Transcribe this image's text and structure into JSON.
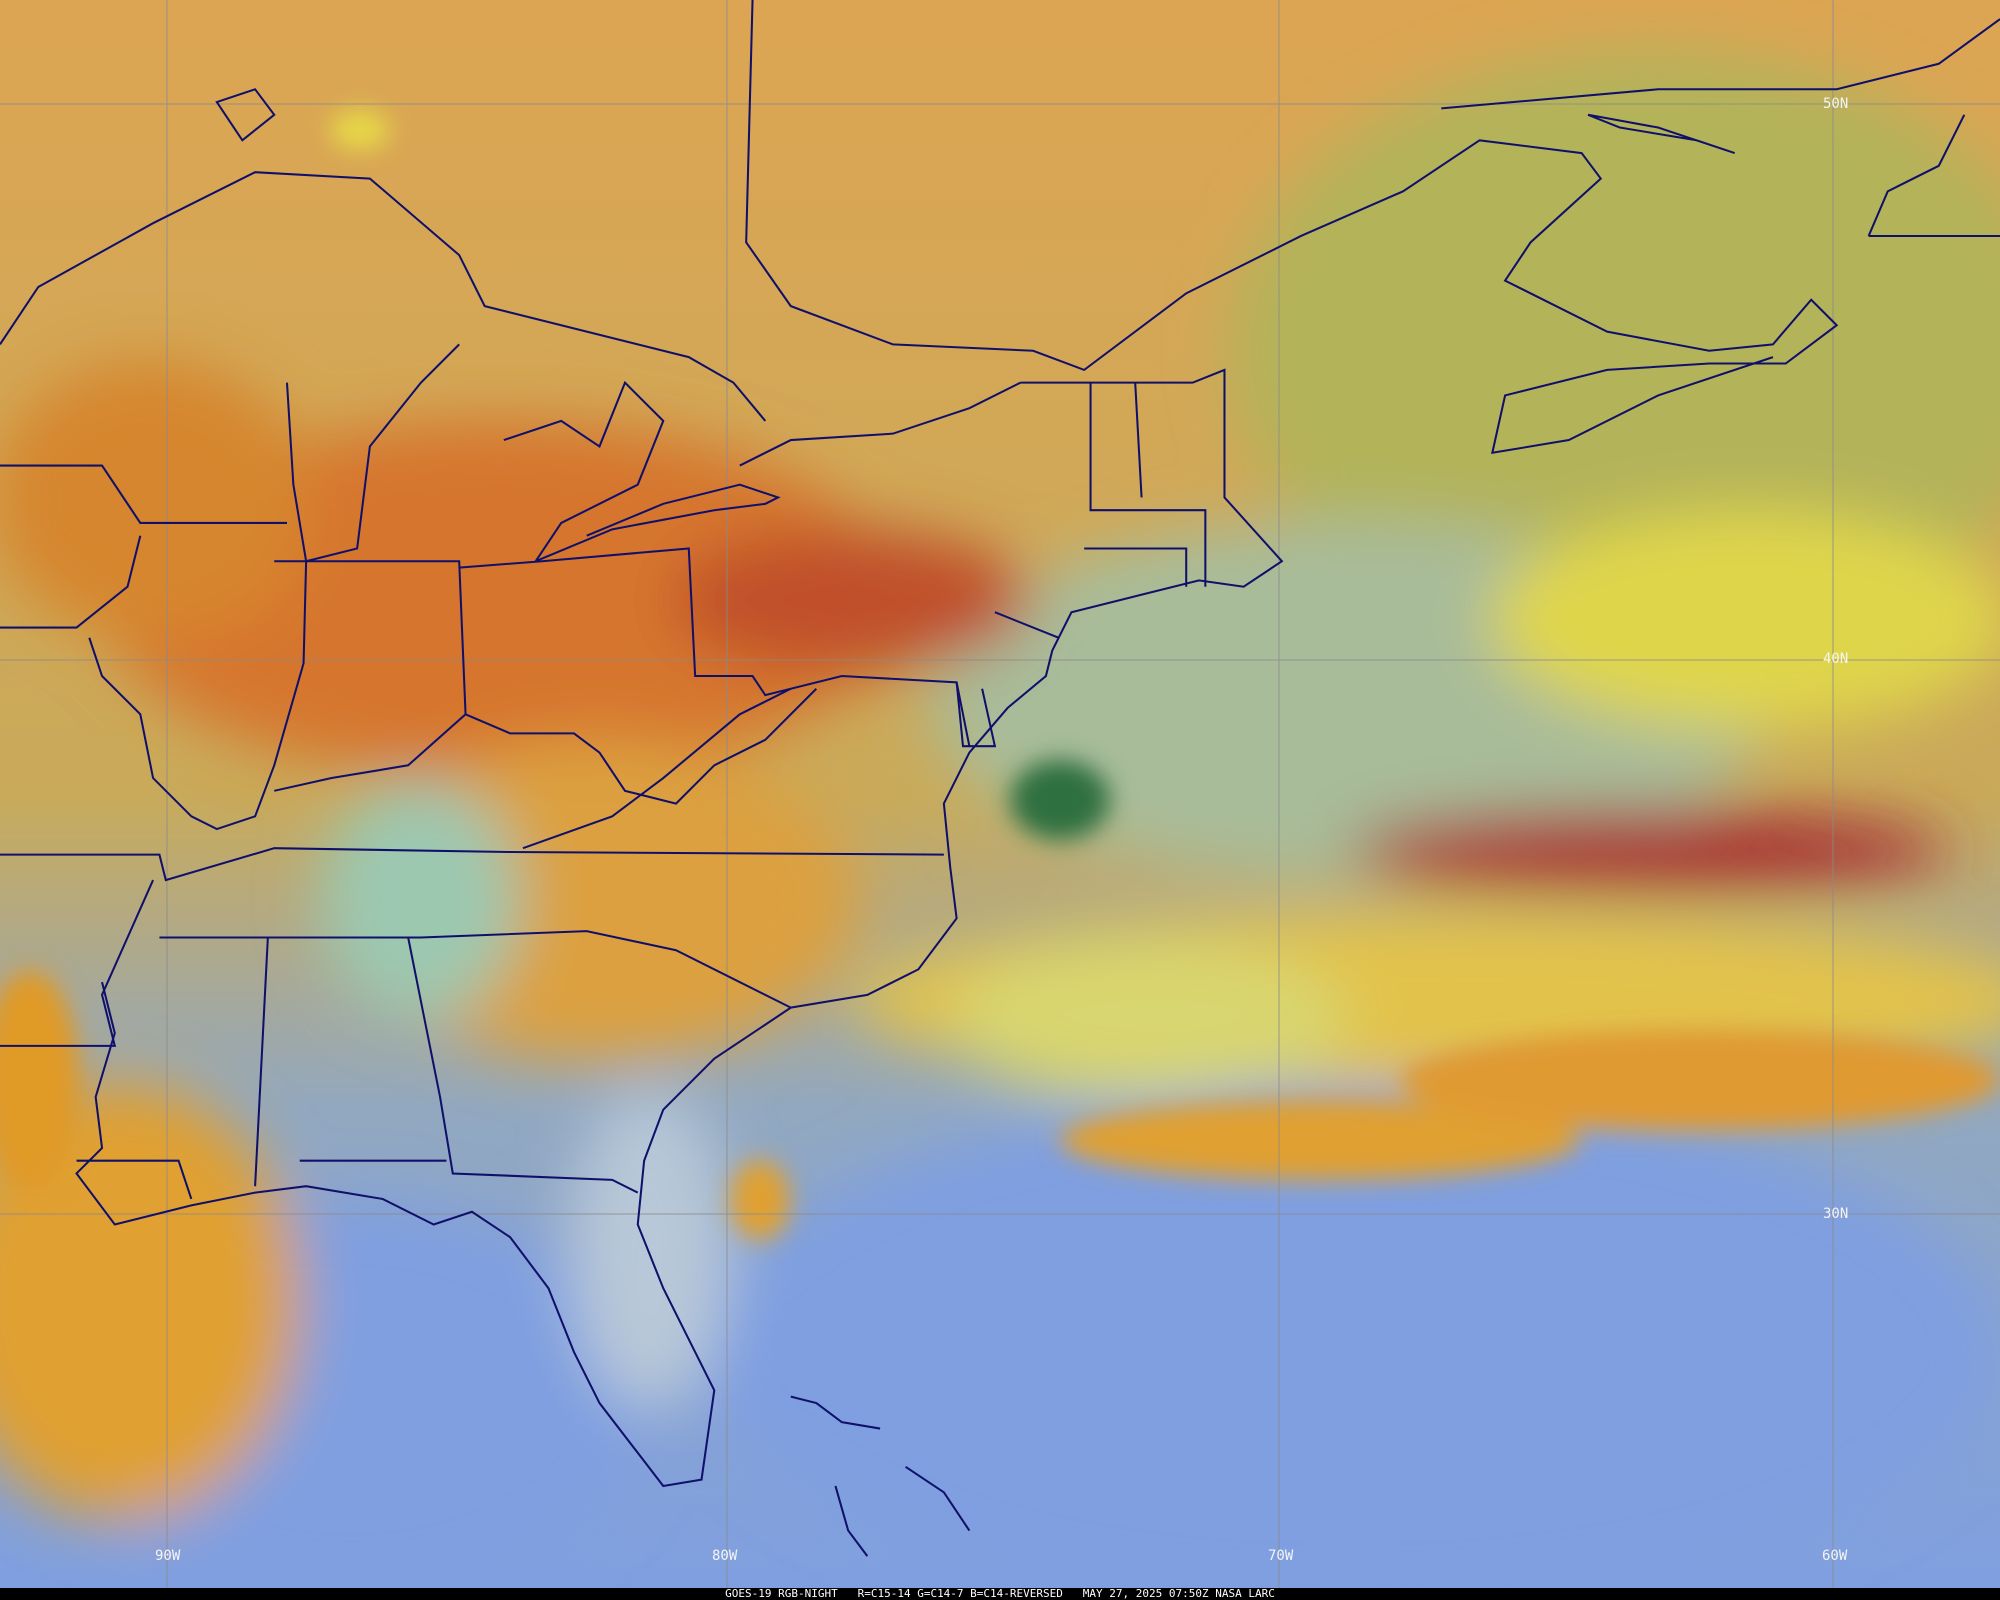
{
  "product": {
    "satellite": "GOES-19",
    "product_name": "RGB-NIGHT",
    "recipe": "R=C15-14 G=C14-7 B=C14-REVERSED",
    "datetime": "MAY 27, 2025 07:50Z",
    "credit": "NASA LARC"
  },
  "graticule": {
    "latitudes": [
      "50N",
      "40N",
      "30N"
    ],
    "longitudes": [
      "90W",
      "80W",
      "70W",
      "60W"
    ]
  },
  "colors": {
    "clear_land": "#dca553",
    "clear_ocean_north": "#b4b45c",
    "ocean_clear": "#7f9fe0",
    "high_cloud": "#c0482c",
    "low_cloud": "#e6d846",
    "boundaries": "#10106a",
    "grid": "#8a8a8a"
  }
}
